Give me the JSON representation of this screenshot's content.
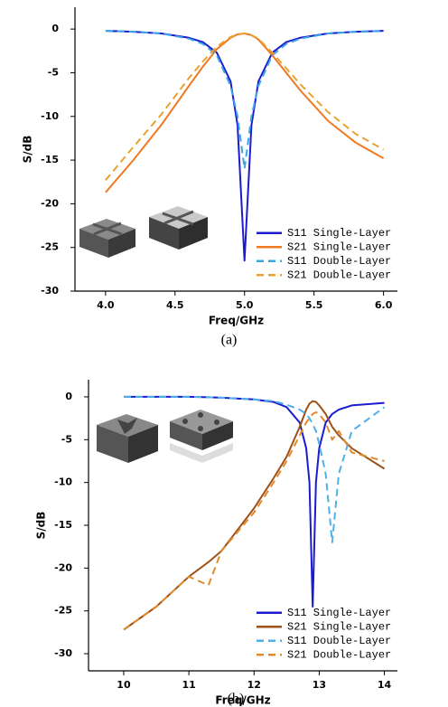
{
  "chart_data": [
    {
      "type": "line",
      "caption": "(a)",
      "x_label": "Freq/GHz",
      "y_label": "S/dB",
      "xlim": [
        3.78,
        6.1
      ],
      "ylim": [
        -30,
        2.5
      ],
      "xticks": [
        {
          "value": 4,
          "label": "4.0"
        },
        4.5,
        {
          "value": 5,
          "label": "5.0"
        },
        5.5,
        {
          "value": 6,
          "label": "6.0"
        }
      ],
      "yticks": [
        0,
        -5,
        -10,
        -15,
        -20,
        -25,
        -30
      ],
      "legend": "lower right",
      "x": [
        4.0,
        4.2,
        4.4,
        4.6,
        4.7,
        4.8,
        4.9,
        4.95,
        5.0,
        5.05,
        5.1,
        5.2,
        5.3,
        5.4,
        5.6,
        5.8,
        6.0
      ],
      "series": [
        {
          "name": "S11 Single-Layer",
          "color": "#1c1ccf",
          "dashed": false,
          "values": [
            -0.2,
            -0.3,
            -0.5,
            -1,
            -1.5,
            -2.7,
            -6,
            -11,
            -26.5,
            -11,
            -6,
            -2.7,
            -1.5,
            -1,
            -0.5,
            -0.3,
            -0.2
          ]
        },
        {
          "name": "S21 Single-Layer",
          "color": "#f07a22",
          "dashed": false,
          "values": [
            -18.7,
            -15,
            -11,
            -6.5,
            -4.3,
            -2.3,
            -1,
            -0.6,
            -0.5,
            -0.7,
            -1.2,
            -3,
            -5,
            -7,
            -10.5,
            -13,
            -14.8
          ]
        },
        {
          "name": "S11 Double-Layer",
          "color": "#3aa6e6",
          "dashed": true,
          "values": [
            -0.2,
            -0.3,
            -0.5,
            -1.1,
            -1.7,
            -3,
            -6.5,
            -10,
            -16,
            -10,
            -6.5,
            -3,
            -1.7,
            -1.1,
            -0.5,
            -0.3,
            -0.2
          ]
        },
        {
          "name": "S21 Double-Layer",
          "color": "#e8a232",
          "dashed": true,
          "values": [
            -17.3,
            -13.5,
            -9.8,
            -5.6,
            -3.7,
            -2,
            -0.9,
            -0.6,
            -0.5,
            -0.7,
            -1.1,
            -2.7,
            -4.5,
            -6.3,
            -9.5,
            -12,
            -13.8
          ]
        }
      ]
    },
    {
      "type": "line",
      "caption": "(b)",
      "x_label": "Freq/GHz",
      "y_label": "S/dB",
      "xlim": [
        9.46,
        14.2
      ],
      "ylim": [
        -32,
        2
      ],
      "xticks": [
        10,
        11,
        12,
        13,
        14
      ],
      "yticks": [
        0,
        -5,
        -10,
        -15,
        -20,
        -25,
        -30
      ],
      "legend": "lower right",
      "x": [
        10,
        10.5,
        11,
        11.3,
        11.5,
        12,
        12.3,
        12.5,
        12.7,
        12.8,
        12.85,
        12.9,
        12.95,
        13,
        13.1,
        13.2,
        13.3,
        13.5,
        14
      ],
      "series": [
        {
          "name": "S11 Single-Layer",
          "color": "#1c1ccf",
          "dashed": false,
          "values": [
            0,
            0,
            0,
            -0.05,
            -0.1,
            -0.3,
            -0.6,
            -1.2,
            -3,
            -6,
            -10,
            -24.5,
            -10,
            -6,
            -3,
            -2,
            -1.5,
            -1,
            -0.7
          ]
        },
        {
          "name": "S21 Single-Layer",
          "color": "#9e5218",
          "dashed": false,
          "values": [
            -27.2,
            -24.5,
            -21,
            -19.3,
            -18,
            -13,
            -9.5,
            -7,
            -3.5,
            -1.5,
            -0.8,
            -0.5,
            -0.6,
            -1,
            -2,
            -3.5,
            -4.5,
            -6,
            -8.4
          ]
        },
        {
          "name": "S11 Double-Layer",
          "color": "#4fb0e8",
          "dashed": true,
          "values": [
            0,
            0,
            0,
            -0.05,
            -0.1,
            -0.3,
            -0.5,
            -0.9,
            -1.5,
            -2,
            -2.5,
            -3.2,
            -4,
            -5.5,
            -9,
            -17,
            -9,
            -4,
            -1.2
          ]
        },
        {
          "name": "S21 Double-Layer",
          "color": "#e08a2c",
          "dashed": true,
          "values": [
            -27.2,
            -24.5,
            -21,
            -22,
            -18,
            -13.5,
            -10,
            -7.5,
            -4.5,
            -3,
            -2.5,
            -2,
            -1.8,
            -2,
            -3,
            -5,
            -4,
            -6.5,
            -7.5
          ]
        }
      ]
    }
  ]
}
